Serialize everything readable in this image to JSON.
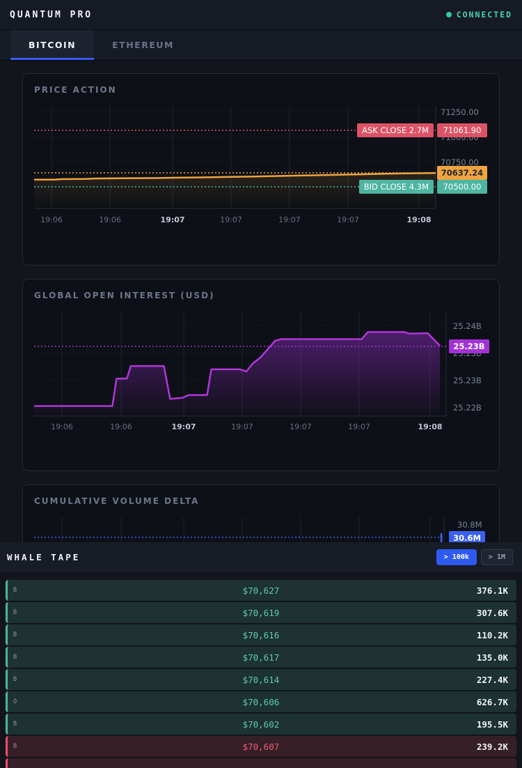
{
  "header": {
    "title": "QUANTUM PRO",
    "connection_status": "CONNECTED",
    "status_color": "#35c79e"
  },
  "tabs": [
    {
      "label": "BITCOIN",
      "active": true
    },
    {
      "label": "ETHEREUM",
      "active": false
    }
  ],
  "accent_colors": {
    "blue": "#3b5af7",
    "orange": "#f0a43f",
    "red": "#dc5366",
    "teal": "#4eb5a0",
    "purple": "#a232d4",
    "button_blue": "#2e5af0"
  },
  "chart_data": [
    {
      "type": "line",
      "title": "PRICE ACTION",
      "x_ticks": [
        {
          "label": "19:06",
          "bold": false
        },
        {
          "label": "19:06",
          "bold": false
        },
        {
          "label": "19:07",
          "bold": true
        },
        {
          "label": "19:07",
          "bold": false
        },
        {
          "label": "19:07",
          "bold": false
        },
        {
          "label": "19:07",
          "bold": false
        },
        {
          "label": "19:08",
          "bold": true
        }
      ],
      "y_ticks": [
        "71250.00",
        "71000.00",
        "70750.00",
        "70500.00"
      ],
      "ylim": [
        70285,
        71306
      ],
      "grid": true,
      "legend": "none",
      "series": [
        {
          "name": "price",
          "color": "#f0a43f",
          "points": [
            [
              0,
              70572
            ],
            [
              0.05,
              70572
            ],
            [
              0.07,
              70577
            ],
            [
              0.13,
              70578
            ],
            [
              0.15,
              70583
            ],
            [
              0.22,
              70585
            ],
            [
              0.3,
              70587
            ],
            [
              0.36,
              70591
            ],
            [
              0.42,
              70594
            ],
            [
              0.48,
              70598
            ],
            [
              0.54,
              70602
            ],
            [
              0.6,
              70607
            ],
            [
              0.66,
              70612
            ],
            [
              0.72,
              70617
            ],
            [
              0.78,
              70622
            ],
            [
              0.84,
              70627
            ],
            [
              0.9,
              70632
            ],
            [
              0.96,
              70636
            ],
            [
              1,
              70637.24
            ]
          ]
        }
      ],
      "annotations": {
        "ask": {
          "label": "ASK CLOSE 2.7M",
          "value": "71061.90",
          "color": "#dc5366",
          "level": 71061.9
        },
        "bid": {
          "label": "BID CLOSE 4.3M",
          "value": "70500.00",
          "color": "#4eb5a0",
          "level": 70500.0
        },
        "last": {
          "value": "70637.24",
          "color": "#f0a43f",
          "level": 70637.24
        }
      }
    },
    {
      "type": "area",
      "title": "GLOBAL OPEN INTEREST (USD)",
      "x_ticks": [
        {
          "label": "19:06",
          "bold": false
        },
        {
          "label": "19:06",
          "bold": false
        },
        {
          "label": "19:07",
          "bold": true
        },
        {
          "label": "19:07",
          "bold": false
        },
        {
          "label": "19:07",
          "bold": false
        },
        {
          "label": "19:07",
          "bold": false
        },
        {
          "label": "19:08",
          "bold": true
        }
      ],
      "y_ticks": [
        "25.24B",
        "25.23B",
        "25.23B",
        "25.22B"
      ],
      "ylim": [
        25.2235,
        25.2425
      ],
      "grid": true,
      "legend": "none",
      "series": [
        {
          "name": "open interest (USD, billions)",
          "color": "#ab34d8",
          "points": [
            [
              0,
              25.2253
            ],
            [
              0.19,
              25.2253
            ],
            [
              0.2,
              25.2303
            ],
            [
              0.225,
              25.2303
            ],
            [
              0.235,
              25.2326
            ],
            [
              0.315,
              25.2326
            ],
            [
              0.33,
              25.2266
            ],
            [
              0.36,
              25.2268
            ],
            [
              0.375,
              25.2273
            ],
            [
              0.42,
              25.2273
            ],
            [
              0.43,
              25.232
            ],
            [
              0.5,
              25.232
            ],
            [
              0.515,
              25.2316
            ],
            [
              0.53,
              25.233
            ],
            [
              0.55,
              25.2342
            ],
            [
              0.565,
              25.2355
            ],
            [
              0.585,
              25.2372
            ],
            [
              0.6,
              25.2375
            ],
            [
              0.795,
              25.2375
            ],
            [
              0.81,
              25.2388
            ],
            [
              0.9,
              25.2388
            ],
            [
              0.91,
              25.2385
            ],
            [
              0.955,
              25.2386
            ],
            [
              0.985,
              25.2363
            ]
          ]
        }
      ],
      "annotations": {
        "last": {
          "value": "25.23B",
          "color": "#a232d4",
          "level": 25.2363
        }
      }
    },
    {
      "type": "line",
      "title": "CUMULATIVE VOLUME DELTA",
      "y_ticks": [
        "30.8M"
      ],
      "grid": true,
      "annotations": {
        "last": {
          "value": "30.6M",
          "color": "#3a60ee",
          "level": "30.6M"
        }
      }
    }
  ],
  "whale_tape": {
    "title": "WHALE TAPE",
    "filters": [
      {
        "label": "> 100k",
        "active": true
      },
      {
        "label": "> 1M",
        "active": false
      }
    ],
    "rows": [
      {
        "exchange": "B",
        "price": "$70,627",
        "size": "376.1K",
        "side": "buy"
      },
      {
        "exchange": "B",
        "price": "$70,619",
        "size": "307.6K",
        "side": "buy"
      },
      {
        "exchange": "B",
        "price": "$70,616",
        "size": "110.2K",
        "side": "buy"
      },
      {
        "exchange": "B",
        "price": "$70,617",
        "size": "135.0K",
        "side": "buy"
      },
      {
        "exchange": "B",
        "price": "$70,614",
        "size": "227.4K",
        "side": "buy"
      },
      {
        "exchange": "O",
        "price": "$70,606",
        "size": "626.7K",
        "side": "buy"
      },
      {
        "exchange": "B",
        "price": "$70,602",
        "size": "195.5K",
        "side": "buy"
      },
      {
        "exchange": "B",
        "price": "$70,607",
        "size": "239.2K",
        "side": "sell"
      },
      {
        "exchange": "",
        "price": "",
        "size": "",
        "side": "sell"
      }
    ]
  }
}
